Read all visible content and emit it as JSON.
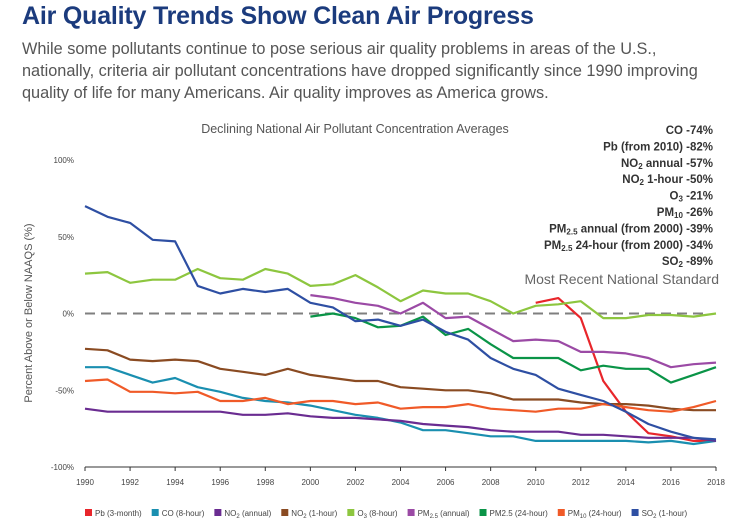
{
  "header": {
    "title": "Air Quality Trends Show Clean Air Progress",
    "intro": "While some pollutants continue to pose serious air quality problems in areas of the U.S., nationally, criteria air pollutant concentrations have dropped significantly since 1990 improving quality of life for many Americans. Air quality improves as America grows."
  },
  "chart_data": {
    "type": "line",
    "title": "Declining National Air Pollutant Concentration Averages",
    "xlabel": "",
    "ylabel": "Percent Above or Below NAAQS (%)",
    "xlim": [
      1990,
      2018
    ],
    "ylim": [
      -100,
      100
    ],
    "x_ticks": [
      "1990",
      "1992",
      "1994",
      "1996",
      "1998",
      "2000",
      "2002",
      "2004",
      "2006",
      "2008",
      "2010",
      "2012",
      "2014",
      "2016",
      "2018"
    ],
    "y_ticks": [
      {
        "v": 100,
        "label": "100%"
      },
      {
        "v": 50,
        "label": "50%"
      },
      {
        "v": 0,
        "label": "0%"
      },
      {
        "v": -50,
        "label": "-50%"
      },
      {
        "v": -100,
        "label": "-100%"
      }
    ],
    "reference_line": {
      "value": 0,
      "label": "Most Recent National Standard",
      "style": "dashed",
      "color": "#7f7f7f"
    },
    "legend_placement": "bottom",
    "series": [
      {
        "name": "Pb (3-month)",
        "legend": {
          "pre": "Pb (3-month)",
          "sub": "",
          "post": ""
        },
        "color": "#e8262b",
        "start": 2010,
        "values": [
          7,
          10,
          -3,
          -44,
          -64,
          -78,
          -80,
          -83,
          -83
        ]
      },
      {
        "name": "CO (8-hour)",
        "legend": {
          "pre": "CO (8-hour)",
          "sub": "",
          "post": ""
        },
        "color": "#1a8fb0",
        "start": 1990,
        "values": [
          -35,
          -35,
          -40,
          -45,
          -42,
          -48,
          -51,
          -55,
          -57,
          -58,
          -60,
          -63,
          -66,
          -68,
          -71,
          -76,
          -76,
          -78,
          -80,
          -80,
          -83,
          -83,
          -83,
          -83,
          -83,
          -84,
          -83,
          -85,
          -83
        ]
      },
      {
        "name": "NO2 (annual)",
        "legend": {
          "pre": "NO",
          "sub": "2",
          "post": " (annual)"
        },
        "color": "#6a2c91",
        "start": 1990,
        "values": [
          -62,
          -64,
          -64,
          -64,
          -64,
          -64,
          -64,
          -66,
          -66,
          -65,
          -67,
          -68,
          -68,
          -69,
          -70,
          -72,
          -73,
          -74,
          -76,
          -77,
          -77,
          -77,
          -79,
          -79,
          -80,
          -81,
          -81,
          -81,
          -83
        ]
      },
      {
        "name": "NO2 (1-hour)",
        "legend": {
          "pre": "NO",
          "sub": "2",
          "post": " (1-hour)"
        },
        "color": "#8a4b22",
        "start": 1990,
        "values": [
          -23,
          -24,
          -30,
          -31,
          -30,
          -31,
          -36,
          -38,
          -40,
          -36,
          -40,
          -42,
          -44,
          -44,
          -48,
          -49,
          -50,
          -50,
          -52,
          -56,
          -56,
          -56,
          -58,
          -59,
          -59,
          -60,
          -62,
          -63,
          -63
        ]
      },
      {
        "name": "O3 (8-hour)",
        "legend": {
          "pre": "O",
          "sub": "3",
          "post": " (8-hour)"
        },
        "color": "#8dc63f",
        "start": 1990,
        "values": [
          26,
          27,
          20,
          22,
          22,
          29,
          23,
          22,
          29,
          26,
          18,
          19,
          25,
          17,
          8,
          15,
          13,
          13,
          8,
          0,
          5,
          6,
          8,
          -3,
          -3,
          -1,
          -1,
          -2,
          0
        ]
      },
      {
        "name": "PM2.5 (annual)",
        "legend": {
          "pre": "PM",
          "sub": "2.5",
          "post": " (annual)"
        },
        "color": "#9b4aa5",
        "start": 2000,
        "values": [
          12,
          10,
          7,
          5,
          0,
          7,
          -3,
          -2,
          -10,
          -18,
          -17,
          -18,
          -25,
          -25,
          -26,
          -29,
          -35,
          -33,
          -32
        ]
      },
      {
        "name": "PM2.5 (24-hour)",
        "legend": {
          "pre": "PM2.5 (24-hour)",
          "sub": "",
          "post": ""
        },
        "color": "#0a9447",
        "start": 2000,
        "values": [
          -2,
          0,
          -3,
          -9,
          -8,
          -2,
          -14,
          -10,
          -20,
          -29,
          -29,
          -29,
          -37,
          -34,
          -36,
          -36,
          -45,
          -40,
          -35
        ]
      },
      {
        "name": "PM10 (24-hour)",
        "legend": {
          "pre": "PM",
          "sub": "10",
          "post": " (24-hour)"
        },
        "color": "#f05a28",
        "start": 1990,
        "values": [
          -44,
          -43,
          -51,
          -51,
          -52,
          -51,
          -57,
          -57,
          -55,
          -59,
          -57,
          -57,
          -59,
          -58,
          -62,
          -61,
          -61,
          -59,
          -62,
          -63,
          -64,
          -62,
          -62,
          -59,
          -61,
          -63,
          -64,
          -61,
          -57
        ]
      },
      {
        "name": "SO2 (1-hour)",
        "legend": {
          "pre": "SO",
          "sub": "2",
          "post": " (1-hour)"
        },
        "color": "#2e4fa3",
        "start": 1990,
        "values": [
          70,
          63,
          59,
          48,
          47,
          18,
          13,
          16,
          14,
          16,
          7,
          4,
          -5,
          -4,
          -8,
          -4,
          -12,
          -17,
          -29,
          -36,
          -40,
          -49,
          -53,
          -57,
          -64,
          -72,
          -77,
          -81,
          -82
        ]
      }
    ],
    "annotations": [
      {
        "pre": "CO -74%",
        "sub": "",
        "post": ""
      },
      {
        "pre": "Pb (from 2010) -82%",
        "sub": "",
        "post": ""
      },
      {
        "pre": "NO",
        "sub": "2",
        "post": " annual -57%"
      },
      {
        "pre": "NO",
        "sub": "2",
        "post": " 1-hour -50%"
      },
      {
        "pre": "O",
        "sub": "3",
        "post": " -21%"
      },
      {
        "pre": "PM",
        "sub": "10",
        "post": " -26%"
      },
      {
        "pre": "PM",
        "sub": "2.5",
        "post": " annual (from 2000) -39%"
      },
      {
        "pre": "PM",
        "sub": "2.5",
        "post": " 24-hour (from 2000) -34%"
      },
      {
        "pre": "SO",
        "sub": "2",
        "post": " -89%"
      }
    ]
  }
}
